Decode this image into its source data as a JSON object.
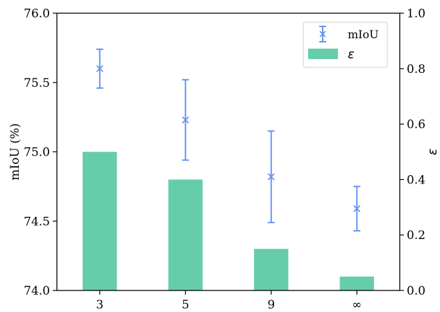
{
  "chart_data": {
    "type": "bar",
    "categories": [
      "3",
      "5",
      "9",
      "∞"
    ],
    "bar_series": {
      "name": "ε",
      "values": [
        0.5,
        0.4,
        0.15,
        0.05
      ],
      "color": "#66cdaa"
    },
    "errorbar_series": {
      "name": "mIoU",
      "values": [
        75.6,
        75.23,
        74.82,
        74.59
      ],
      "err_low": [
        75.46,
        74.94,
        74.49,
        74.43
      ],
      "err_high": [
        75.74,
        75.52,
        75.15,
        74.75
      ],
      "color": "#6495ed",
      "marker": "x"
    },
    "ylabel_left": "mIoU (%)",
    "ylabel_right": "ε",
    "ylim_left": [
      74.0,
      76.0
    ],
    "ylim_right": [
      0.0,
      1.0
    ],
    "yticks_left": [
      "74.0",
      "74.5",
      "75.0",
      "75.5",
      "76.0"
    ],
    "yticks_right": [
      "0.0",
      "0.2",
      "0.4",
      "0.6",
      "0.8",
      "1.0"
    ],
    "legend_position": "upper-right",
    "grid": false
  }
}
